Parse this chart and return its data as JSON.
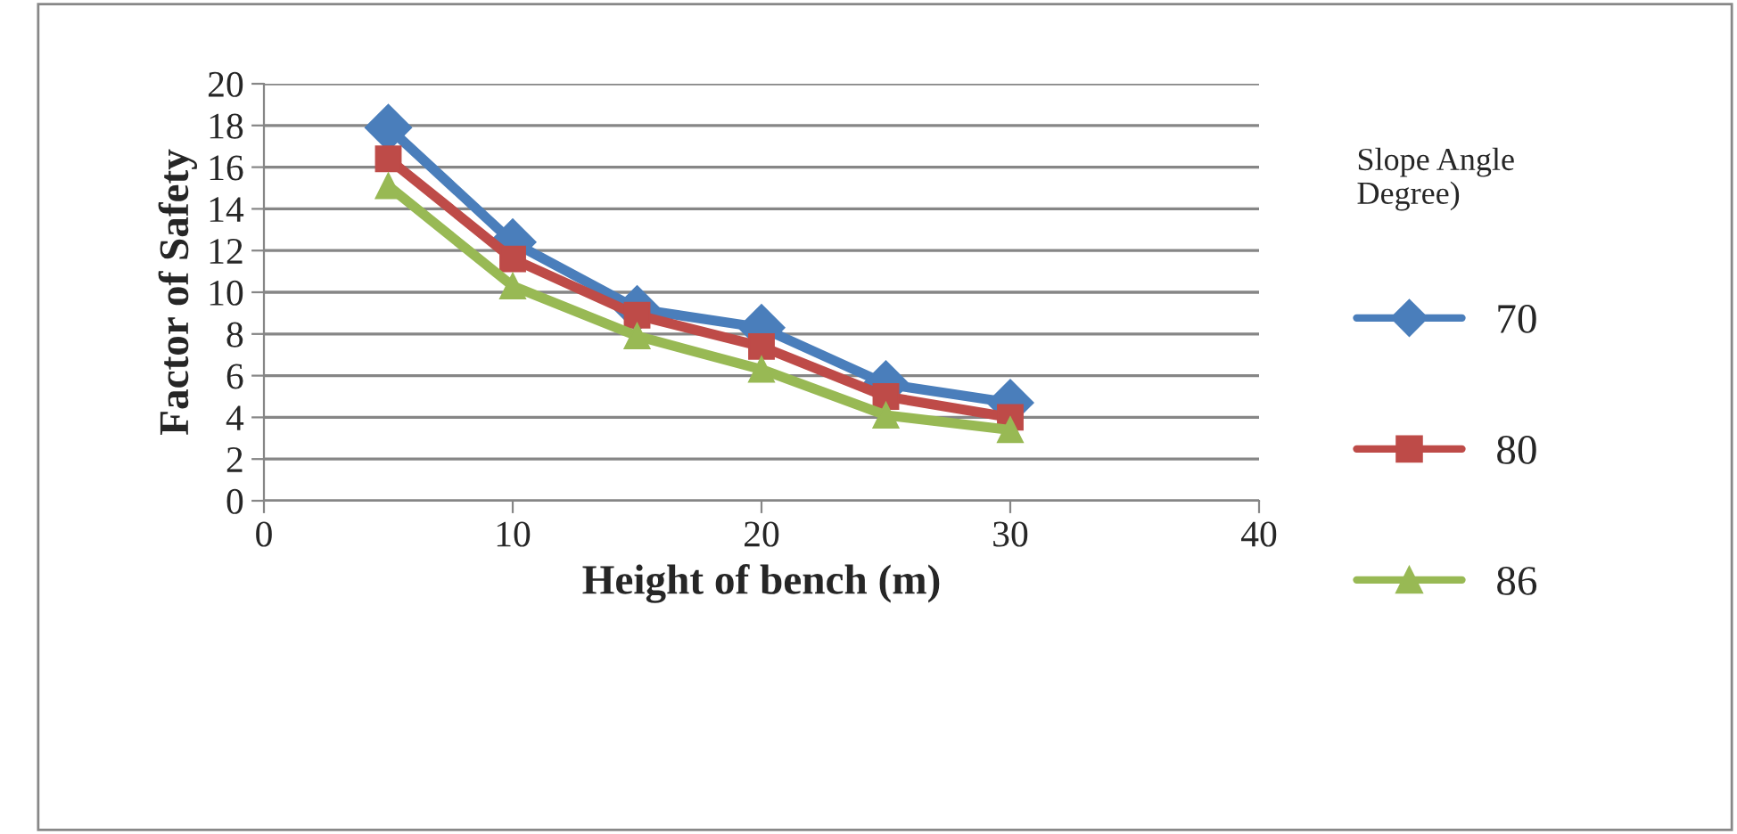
{
  "chart_data": {
    "type": "line",
    "xlabel": "Height of bench (m)",
    "ylabel": "Factor of Safety",
    "legend_title": "Slope Angle\nDegree)",
    "legend": "right",
    "line_style": "solid",
    "grid": "y",
    "x": [
      5,
      10,
      15,
      20,
      25,
      30
    ],
    "xlim": [
      0,
      40
    ],
    "xticks": [
      0,
      10,
      20,
      30,
      40
    ],
    "ylim": [
      0,
      20
    ],
    "yticks": [
      0,
      2,
      4,
      6,
      8,
      10,
      12,
      14,
      16,
      18,
      20
    ],
    "series": [
      {
        "name": "70",
        "color": "#4a7ebb",
        "marker": "diamond",
        "values": [
          17.9,
          12.4,
          9.2,
          8.3,
          5.6,
          4.7
        ]
      },
      {
        "name": "80",
        "color": "#be4b48",
        "marker": "square",
        "values": [
          16.4,
          11.6,
          8.9,
          7.4,
          5.0,
          4.0
        ]
      },
      {
        "name": "86",
        "color": "#98b954",
        "marker": "triangle",
        "values": [
          15.1,
          10.3,
          7.9,
          6.3,
          4.1,
          3.4
        ]
      }
    ]
  }
}
